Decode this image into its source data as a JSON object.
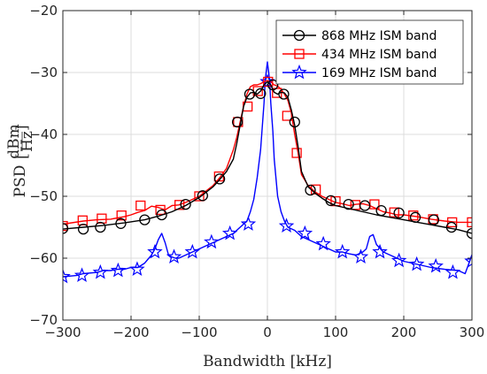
{
  "chart_data": {
    "type": "line",
    "xlabel": "Bandwidth [kHz]",
    "ylabel_main": "PSD",
    "ylabel_unit_num": "dBm",
    "ylabel_unit_den": "Hz",
    "xlim": [
      -300,
      300
    ],
    "ylim": [
      -70,
      -20
    ],
    "xticks": [
      -300,
      -200,
      -100,
      0,
      100,
      200,
      300
    ],
    "yticks": [
      -70,
      -60,
      -50,
      -40,
      -30,
      -20
    ],
    "xtick_labels": [
      "−300",
      "−200",
      "−100",
      "0",
      "100",
      "200",
      "300"
    ],
    "ytick_labels": [
      "−70",
      "−60",
      "−50",
      "−40",
      "−30",
      "−20"
    ],
    "grid": true,
    "legend_position": "top-right",
    "series": [
      {
        "name": "868 MHz ISM band",
        "color": "#000000",
        "marker": "circle",
        "x": [
          -300,
          -270,
          -240,
          -210,
          -180,
          -160,
          -140,
          -120,
          -100,
          -80,
          -70,
          -60,
          -50,
          -45,
          -40,
          -35,
          -30,
          -25,
          -20,
          -15,
          -10,
          -5,
          0,
          5,
          10,
          15,
          20,
          25,
          30,
          35,
          40,
          45,
          50,
          60,
          70,
          80,
          90,
          100,
          120,
          140,
          160,
          180,
          200,
          220,
          240,
          260,
          280,
          300
        ],
        "y": [
          -55.3,
          -55.0,
          -54.7,
          -54.3,
          -53.8,
          -53.2,
          -52.5,
          -51.5,
          -50.2,
          -48.5,
          -47.3,
          -46.0,
          -44.0,
          -41.5,
          -38.5,
          -35.5,
          -34.0,
          -33.3,
          -33.2,
          -33.5,
          -33.0,
          -32.0,
          -31.5,
          -32.0,
          -33.2,
          -33.5,
          -33.2,
          -33.3,
          -34.0,
          -36.0,
          -38.5,
          -42.0,
          -46.0,
          -48.5,
          -49.5,
          -50.3,
          -51.0,
          -51.5,
          -52.0,
          -52.5,
          -53.0,
          -53.4,
          -53.8,
          -54.2,
          -54.6,
          -55.0,
          -55.4,
          -56.0
        ],
        "marker_x": [
          -300,
          -270,
          -245,
          -215,
          -180,
          -155,
          -120,
          -95,
          -70,
          -44,
          -26,
          -10,
          8,
          24,
          40,
          63,
          93,
          119,
          143,
          167,
          193,
          217,
          244,
          270,
          300
        ],
        "marker_y": [
          -55.2,
          -55.3,
          -55.0,
          -54.4,
          -53.8,
          -53.0,
          -51.3,
          -49.9,
          -47.2,
          -38.0,
          -33.5,
          -33.4,
          -32.0,
          -33.5,
          -38.0,
          -49.0,
          -50.7,
          -51.3,
          -51.5,
          -52.3,
          -52.7,
          -53.4,
          -53.8,
          -55.0,
          -56.0
        ]
      },
      {
        "name": "434 MHz ISM band",
        "color": "#ff0000",
        "marker": "square",
        "x": [
          -300,
          -270,
          -250,
          -230,
          -210,
          -200,
          -190,
          -180,
          -170,
          -160,
          -150,
          -140,
          -130,
          -120,
          -100,
          -80,
          -70,
          -60,
          -50,
          -45,
          -40,
          -35,
          -30,
          -25,
          -20,
          -15,
          -10,
          -5,
          0,
          5,
          10,
          15,
          20,
          25,
          30,
          35,
          40,
          45,
          50,
          60,
          70,
          80,
          90,
          100,
          110,
          120,
          130,
          140,
          150,
          160,
          170,
          180,
          190,
          200,
          220,
          240,
          260,
          280,
          300
        ],
        "y": [
          -54.5,
          -54.0,
          -53.8,
          -53.7,
          -53.3,
          -53.0,
          -52.6,
          -52.3,
          -51.6,
          -51.8,
          -52.2,
          -51.5,
          -51.4,
          -51.0,
          -50.0,
          -48.3,
          -47.0,
          -45.5,
          -42.5,
          -40.5,
          -38.0,
          -35.5,
          -33.5,
          -32.3,
          -32.0,
          -32.0,
          -31.8,
          -31.5,
          -31.3,
          -31.5,
          -32.0,
          -32.2,
          -32.7,
          -33.5,
          -34.5,
          -36.5,
          -40.0,
          -43.0,
          -46.5,
          -48.3,
          -49.3,
          -50.0,
          -50.5,
          -51.0,
          -51.2,
          -51.5,
          -51.3,
          -51.2,
          -51.5,
          -52.0,
          -52.5,
          -52.7,
          -53.0,
          -53.0,
          -53.3,
          -53.7,
          -54.0,
          -54.2,
          -54.2
        ],
        "marker_x": [
          -300,
          -271,
          -243,
          -214,
          -186,
          -157,
          -129,
          -100,
          -71,
          -43,
          -29,
          -14,
          1,
          14,
          29,
          43,
          71,
          100,
          129,
          157,
          186,
          214,
          243,
          271,
          300
        ],
        "marker_y": [
          -54.8,
          -53.9,
          -53.6,
          -53.1,
          -51.5,
          -52.2,
          -51.4,
          -50.0,
          -46.8,
          -38.0,
          -35.5,
          -33.0,
          -31.5,
          -33.3,
          -37.0,
          -43.0,
          -48.9,
          -50.8,
          -51.4,
          -51.3,
          -52.6,
          -53.1,
          -53.7,
          -54.2,
          -54.2
        ]
      },
      {
        "name": "169 MHz ISM band",
        "color": "#0000ff",
        "marker": "pentagram",
        "x": [
          -300,
          -280,
          -270,
          -250,
          -240,
          -230,
          -220,
          -210,
          -200,
          -190,
          -180,
          -170,
          -165,
          -160,
          -155,
          -150,
          -145,
          -140,
          -135,
          -130,
          -120,
          -110,
          -100,
          -90,
          -80,
          -70,
          -60,
          -50,
          -40,
          -30,
          -25,
          -20,
          -15,
          -10,
          -8,
          -5,
          -3,
          0,
          3,
          5,
          8,
          10,
          15,
          20,
          25,
          30,
          40,
          50,
          60,
          70,
          80,
          90,
          100,
          110,
          120,
          130,
          140,
          145,
          150,
          155,
          160,
          170,
          180,
          190,
          200,
          220,
          240,
          260,
          280,
          290,
          300
        ],
        "y": [
          -63.0,
          -62.8,
          -62.5,
          -62.3,
          -62.0,
          -62.0,
          -61.8,
          -61.8,
          -61.5,
          -61.5,
          -60.8,
          -59.5,
          -58.5,
          -57.0,
          -56.0,
          -57.5,
          -59.5,
          -59.8,
          -60.0,
          -60.0,
          -59.5,
          -59.0,
          -58.5,
          -58.0,
          -57.5,
          -57.0,
          -56.5,
          -56.0,
          -55.0,
          -54.0,
          -52.5,
          -50.5,
          -47.0,
          -42.5,
          -39.5,
          -35.0,
          -31.0,
          -28.3,
          -31.0,
          -35.0,
          -39.5,
          -44.0,
          -50.0,
          -52.5,
          -54.0,
          -55.0,
          -55.5,
          -56.5,
          -57.0,
          -57.5,
          -58.0,
          -58.5,
          -59.0,
          -59.0,
          -59.3,
          -59.5,
          -59.0,
          -58.5,
          -56.5,
          -56.2,
          -57.8,
          -59.0,
          -59.5,
          -60.0,
          -60.5,
          -61.0,
          -61.5,
          -61.8,
          -62.0,
          -62.5,
          -59.5
        ],
        "marker_x": [
          -300,
          -272,
          -245,
          -219,
          -191,
          -165,
          -137,
          -110,
          -82,
          -55,
          -28,
          0,
          28,
          55,
          82,
          110,
          137,
          165,
          193,
          219,
          247,
          272,
          300
        ],
        "marker_y": [
          -63.0,
          -62.8,
          -62.3,
          -62.0,
          -61.8,
          -59.0,
          -59.8,
          -59.0,
          -57.4,
          -56.0,
          -54.5,
          -31.5,
          -54.8,
          -56.0,
          -57.7,
          -59.0,
          -59.8,
          -59.0,
          -60.4,
          -61.0,
          -61.3,
          -62.3,
          -60.5
        ]
      }
    ]
  }
}
